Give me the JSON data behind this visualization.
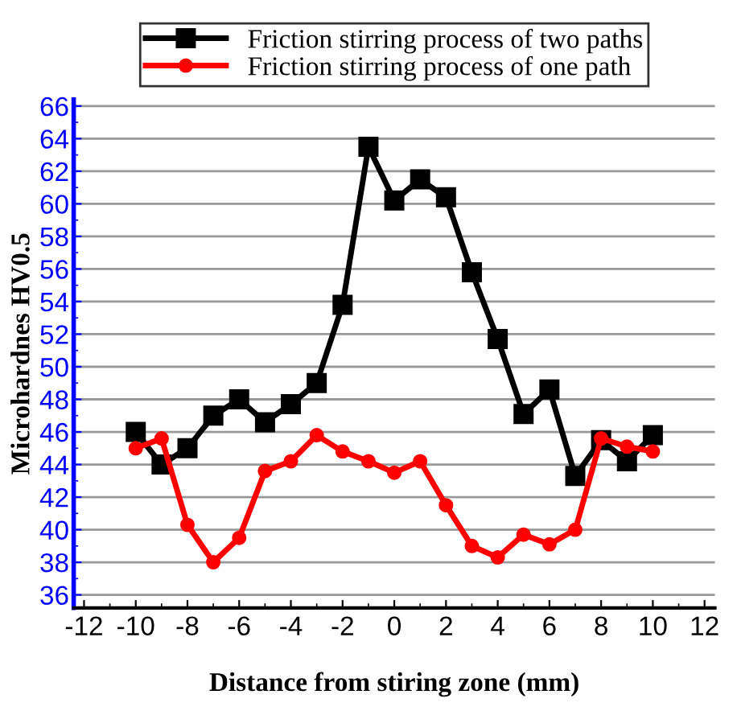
{
  "chart_data": {
    "type": "line",
    "xlabel": "Distance from stiring zone (mm)",
    "ylabel": "Microhardnes HV0.5",
    "x": [
      -10,
      -9,
      -8,
      -7,
      -6,
      -5,
      -4,
      -3,
      -2,
      -1,
      0,
      1,
      2,
      3,
      4,
      5,
      6,
      7,
      8,
      9,
      10
    ],
    "series": [
      {
        "name": "Friction stirring process of two paths",
        "color": "#000000",
        "marker": "square",
        "values": [
          46,
          44,
          45,
          47,
          48,
          46.6,
          47.7,
          49,
          53.8,
          63.5,
          60.2,
          61.5,
          60.4,
          55.8,
          51.7,
          47.1,
          48.6,
          43.3,
          45.5,
          44.2,
          45.8
        ]
      },
      {
        "name": "Friction stirring process of one path",
        "color": "#ff0000",
        "marker": "circle",
        "values": [
          45,
          45.6,
          40.3,
          38,
          39.5,
          43.6,
          44.2,
          45.8,
          44.8,
          44.2,
          43.5,
          44.2,
          41.5,
          39,
          38.3,
          39.7,
          39.1,
          40,
          45.6,
          45.1,
          44.8
        ]
      }
    ],
    "xlim": [
      -12.4,
      12.4
    ],
    "xticks": [
      -12,
      -10,
      -8,
      -6,
      -4,
      -2,
      0,
      2,
      4,
      6,
      8,
      10,
      12
    ],
    "ylim": [
      35.2,
      66.4
    ],
    "yticks": [
      36,
      38,
      40,
      42,
      44,
      46,
      48,
      50,
      52,
      54,
      56,
      58,
      60,
      62,
      64,
      66
    ],
    "grid": "y",
    "legend": "top",
    "line_style": "solid"
  }
}
